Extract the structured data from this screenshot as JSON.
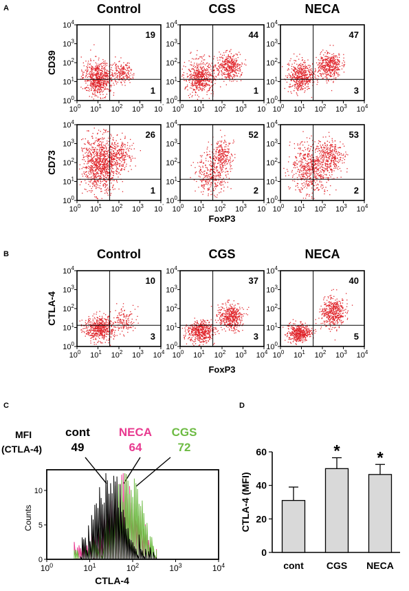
{
  "panel_letters": {
    "a": "A",
    "b": "B",
    "c": "C",
    "d": "D"
  },
  "panel_a": {
    "column_titles": [
      "Control",
      "CGS",
      "NECA"
    ],
    "row_ylabels": [
      "CD39",
      "CD73"
    ],
    "xlabel": "FoxP3",
    "upper_right_values": [
      [
        "19",
        "44",
        "47"
      ],
      [
        "26",
        "52",
        "53"
      ]
    ],
    "lower_right_values": [
      [
        "1",
        "1",
        "3"
      ],
      [
        "1",
        "2",
        "2"
      ]
    ]
  },
  "panel_b": {
    "column_titles": [
      "Control",
      "CGS",
      "NECA"
    ],
    "ylabel": "CTLA-4",
    "xlabel": "FoxP3",
    "upper_right_values": [
      "10",
      "37",
      "40"
    ],
    "lower_right_values": [
      "3",
      "3",
      "5"
    ]
  },
  "flow_axis": {
    "tick_base": "10",
    "tick_exponents": [
      "0",
      "1",
      "2",
      "3",
      "4"
    ],
    "last_tick_label_variants": [
      "4",
      "'"
    ]
  },
  "colors": {
    "dots": "#e0242a",
    "neca": "#e8398f",
    "cgs": "#6dbb43",
    "cont": "#000000",
    "bar_fill": "#d9d9d9"
  },
  "panel_c": {
    "mfi_label_line1": "MFI",
    "mfi_label_line2": "(CTLA-4)",
    "groups": [
      {
        "name": "cont",
        "mfi": "49",
        "color": "#000000"
      },
      {
        "name": "NECA",
        "mfi": "64",
        "color": "#e8398f"
      },
      {
        "name": "CGS",
        "mfi": "72",
        "color": "#6dbb43"
      }
    ],
    "ylabel": "Counts",
    "xlabel": "CTLA-4",
    "y_ticks": [
      "0",
      "5",
      "10"
    ]
  },
  "chart_data": {
    "type": "bar",
    "categories": [
      "cont",
      "CGS",
      "NECA"
    ],
    "values": [
      31,
      50,
      46.5
    ],
    "errors": [
      8,
      6.5,
      6
    ],
    "significance": [
      "",
      "*",
      "*"
    ],
    "ylabel": "CTLA-4 (MFI)",
    "ylim": [
      0,
      60
    ],
    "y_ticks": [
      "0",
      "20",
      "40",
      "60"
    ]
  }
}
